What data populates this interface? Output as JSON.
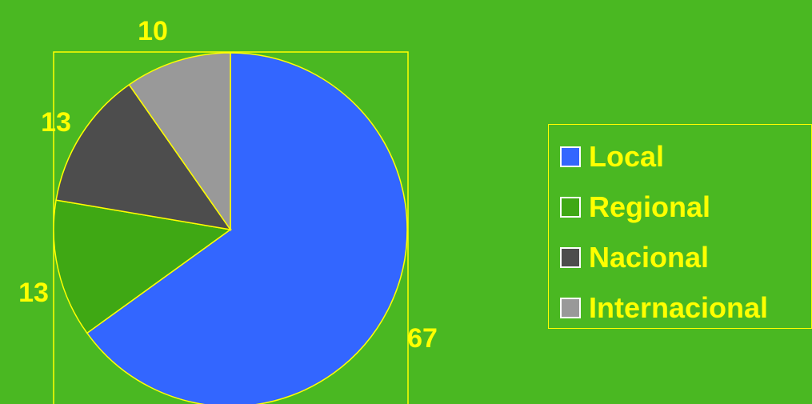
{
  "background_color": "#4ab822",
  "accent_color": "#ffff00",
  "chart_data": {
    "type": "pie",
    "categories": [
      "Local",
      "Regional",
      "Nacional",
      "Internacional"
    ],
    "values": [
      67,
      13,
      13,
      10
    ],
    "data_labels": [
      "67",
      "13",
      "13",
      "10"
    ],
    "colors": [
      "#3366ff",
      "#3fa814",
      "#4d4d4d",
      "#999999"
    ],
    "title": "",
    "legend_position": "right",
    "start_angle": "top",
    "direction": "clockwise"
  },
  "legend": {
    "items": [
      {
        "label": "Local",
        "color": "#3366ff"
      },
      {
        "label": "Regional",
        "color": "#3fa814"
      },
      {
        "label": "Nacional",
        "color": "#4d4d4d"
      },
      {
        "label": "Internacional",
        "color": "#999999"
      }
    ]
  }
}
